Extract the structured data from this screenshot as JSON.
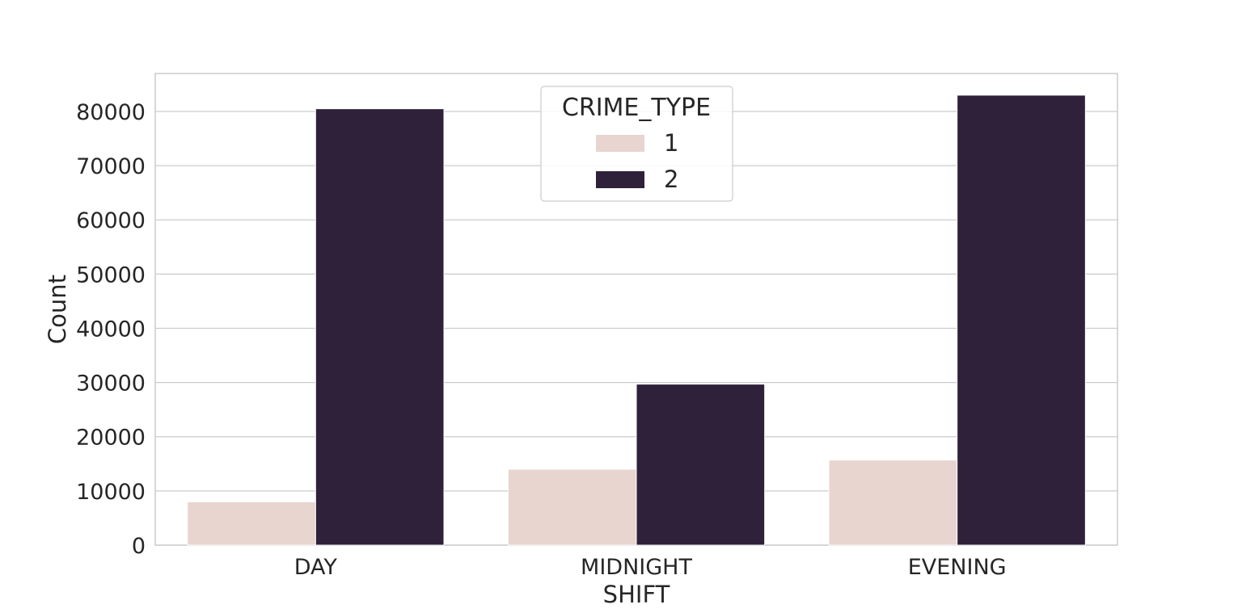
{
  "chart_data": {
    "type": "bar",
    "title": "",
    "xlabel": "SHIFT",
    "ylabel": "Count",
    "categories": [
      "DAY",
      "MIDNIGHT",
      "EVENING"
    ],
    "series": [
      {
        "name": "1",
        "values": [
          8000,
          14000,
          15700
        ],
        "color": "#e8d5cf"
      },
      {
        "name": "2",
        "values": [
          80500,
          29700,
          83000
        ],
        "color": "#2e2139"
      }
    ],
    "ylim": [
      0,
      87000
    ],
    "yticks": [
      0,
      10000,
      20000,
      30000,
      40000,
      50000,
      60000,
      70000,
      80000
    ],
    "grid": true,
    "legend": {
      "title": "CRIME_TYPE",
      "placement": "top-center"
    }
  }
}
